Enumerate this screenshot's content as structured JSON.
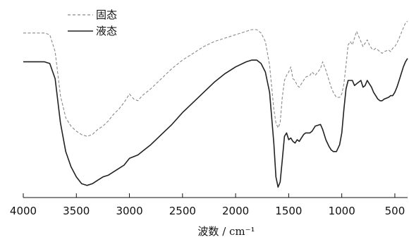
{
  "chart_data": {
    "type": "line",
    "title": "",
    "xlabel": "波数 / cm⁻¹",
    "ylabel": "",
    "x_reversed": true,
    "xlim": [
      4000,
      380
    ],
    "ylim": [
      0,
      1
    ],
    "grid": false,
    "legend_placement": "top-left",
    "x_ticks": [
      4000,
      3500,
      3000,
      2500,
      2000,
      1500,
      1000,
      500
    ],
    "x_tick_labels": [
      "4000",
      "3500",
      "3000",
      "2500",
      "2000",
      "1500",
      "1000",
      "500"
    ],
    "series": [
      {
        "name": "固态",
        "style": "dashed",
        "color": "#8a8a8a",
        "x": [
          4000,
          3800,
          3750,
          3700,
          3650,
          3600,
          3550,
          3500,
          3450,
          3400,
          3350,
          3300,
          3250,
          3200,
          3150,
          3100,
          3050,
          3000,
          2960,
          2920,
          2880,
          2800,
          2700,
          2600,
          2500,
          2400,
          2300,
          2200,
          2100,
          2000,
          1900,
          1850,
          1800,
          1760,
          1720,
          1680,
          1640,
          1620,
          1600,
          1580,
          1560,
          1540,
          1520,
          1500,
          1480,
          1460,
          1440,
          1420,
          1400,
          1380,
          1360,
          1340,
          1300,
          1280,
          1250,
          1200,
          1180,
          1150,
          1120,
          1100,
          1080,
          1050,
          1020,
          1000,
          980,
          960,
          940,
          920,
          900,
          880,
          860,
          840,
          820,
          800,
          780,
          760,
          740,
          720,
          700,
          680,
          660,
          640,
          620,
          600,
          560,
          540,
          520,
          500,
          480,
          460,
          440,
          420,
          400,
          380
        ],
        "values": [
          0.93,
          0.93,
          0.92,
          0.82,
          0.56,
          0.43,
          0.38,
          0.35,
          0.33,
          0.32,
          0.33,
          0.36,
          0.38,
          0.41,
          0.45,
          0.48,
          0.52,
          0.57,
          0.54,
          0.53,
          0.56,
          0.6,
          0.66,
          0.72,
          0.77,
          0.81,
          0.85,
          0.88,
          0.9,
          0.92,
          0.94,
          0.95,
          0.95,
          0.93,
          0.88,
          0.74,
          0.48,
          0.4,
          0.37,
          0.4,
          0.55,
          0.65,
          0.68,
          0.7,
          0.73,
          0.66,
          0.65,
          0.62,
          0.61,
          0.63,
          0.65,
          0.67,
          0.68,
          0.7,
          0.68,
          0.72,
          0.76,
          0.71,
          0.65,
          0.61,
          0.58,
          0.55,
          0.55,
          0.57,
          0.63,
          0.74,
          0.86,
          0.88,
          0.86,
          0.9,
          0.94,
          0.91,
          0.88,
          0.85,
          0.87,
          0.89,
          0.86,
          0.84,
          0.83,
          0.84,
          0.83,
          0.82,
          0.81,
          0.82,
          0.83,
          0.82,
          0.84,
          0.85,
          0.87,
          0.9,
          0.93,
          0.96,
          0.99,
          1.0
        ]
      },
      {
        "name": "液态",
        "style": "solid",
        "color": "#222222",
        "x": [
          4000,
          3800,
          3750,
          3700,
          3650,
          3600,
          3550,
          3500,
          3450,
          3400,
          3350,
          3300,
          3250,
          3200,
          3150,
          3100,
          3050,
          3000,
          2960,
          2920,
          2880,
          2800,
          2700,
          2600,
          2500,
          2400,
          2300,
          2200,
          2100,
          2000,
          1900,
          1850,
          1800,
          1760,
          1720,
          1680,
          1640,
          1620,
          1600,
          1580,
          1560,
          1540,
          1520,
          1500,
          1480,
          1460,
          1440,
          1420,
          1400,
          1380,
          1360,
          1340,
          1300,
          1280,
          1250,
          1200,
          1180,
          1150,
          1120,
          1100,
          1080,
          1050,
          1020,
          1000,
          980,
          960,
          940,
          920,
          900,
          880,
          860,
          840,
          820,
          800,
          780,
          760,
          740,
          720,
          700,
          680,
          660,
          640,
          620,
          600,
          560,
          540,
          520,
          500,
          480,
          460,
          440,
          420,
          400,
          380
        ],
        "values": [
          0.76,
          0.76,
          0.75,
          0.66,
          0.4,
          0.23,
          0.14,
          0.08,
          0.04,
          0.03,
          0.04,
          0.06,
          0.08,
          0.09,
          0.11,
          0.13,
          0.15,
          0.19,
          0.2,
          0.21,
          0.23,
          0.27,
          0.33,
          0.39,
          0.46,
          0.52,
          0.58,
          0.64,
          0.69,
          0.73,
          0.76,
          0.77,
          0.77,
          0.75,
          0.7,
          0.58,
          0.28,
          0.08,
          0.02,
          0.05,
          0.18,
          0.32,
          0.34,
          0.3,
          0.31,
          0.29,
          0.28,
          0.3,
          0.29,
          0.31,
          0.33,
          0.34,
          0.34,
          0.35,
          0.38,
          0.39,
          0.36,
          0.3,
          0.26,
          0.24,
          0.23,
          0.23,
          0.27,
          0.34,
          0.48,
          0.6,
          0.65,
          0.65,
          0.65,
          0.62,
          0.63,
          0.64,
          0.65,
          0.61,
          0.62,
          0.65,
          0.63,
          0.61,
          0.58,
          0.56,
          0.54,
          0.53,
          0.53,
          0.54,
          0.55,
          0.56,
          0.56,
          0.58,
          0.61,
          0.65,
          0.69,
          0.73,
          0.76,
          0.78
        ]
      }
    ]
  }
}
